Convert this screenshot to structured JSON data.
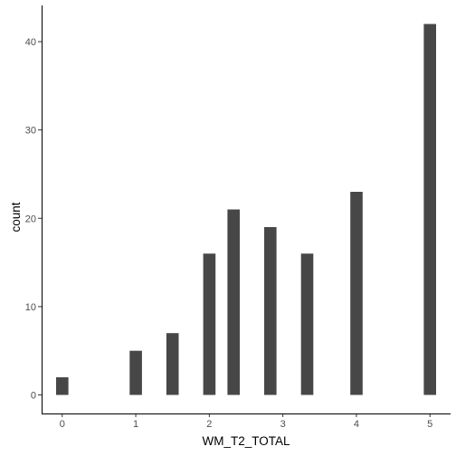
{
  "chart_data": {
    "type": "bar",
    "xlabel": "WM_T2_TOTAL",
    "ylabel": "count",
    "xlim": [
      -0.28,
      5.28
    ],
    "ylim": [
      -2.1,
      44.1
    ],
    "x_ticks": [
      0,
      1,
      2,
      3,
      4,
      5
    ],
    "x_tick_labels": [
      "0",
      "1",
      "2",
      "3",
      "4",
      "5"
    ],
    "y_ticks": [
      0,
      10,
      20,
      30,
      40
    ],
    "y_tick_labels": [
      "0",
      "10",
      "20",
      "30",
      "40"
    ],
    "bar_width": 0.167,
    "bars": [
      {
        "x": 0.0,
        "value": 2
      },
      {
        "x": 1.0,
        "value": 5
      },
      {
        "x": 1.5,
        "value": 7
      },
      {
        "x": 2.0,
        "value": 16
      },
      {
        "x": 2.33,
        "value": 21
      },
      {
        "x": 2.83,
        "value": 19
      },
      {
        "x": 3.33,
        "value": 16
      },
      {
        "x": 4.0,
        "value": 23
      },
      {
        "x": 5.0,
        "value": 42
      }
    ],
    "bar_color": "#474747",
    "grid": false,
    "legend": "none"
  }
}
